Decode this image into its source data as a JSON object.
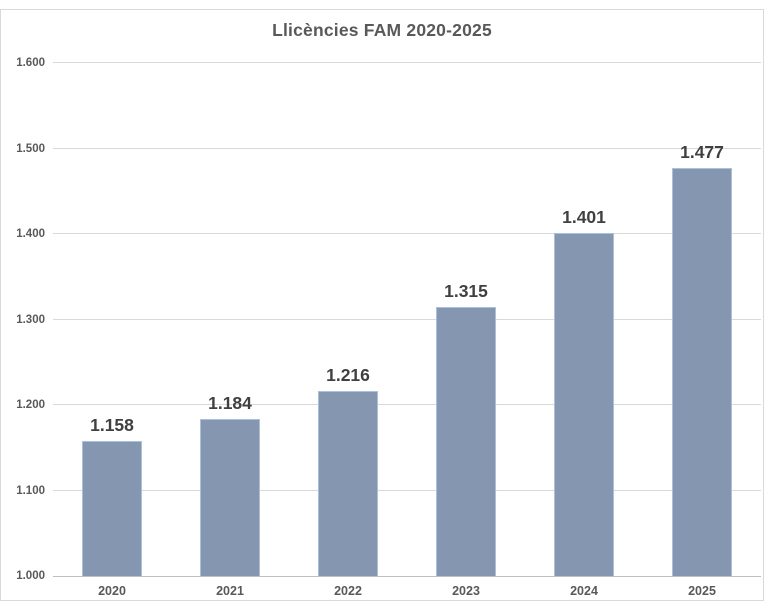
{
  "chart_data": {
    "type": "bar",
    "title": "Llicències FAM 2020-2025",
    "categories": [
      "2020",
      "2021",
      "2022",
      "2023",
      "2024",
      "2025"
    ],
    "values": [
      1158,
      1184,
      1216,
      1315,
      1401,
      1477
    ],
    "value_labels": [
      "1.158",
      "1.184",
      "1.216",
      "1.315",
      "1.401",
      "1.477"
    ],
    "xlabel": "",
    "ylabel": "",
    "ylim": [
      1000,
      1600
    ],
    "yticks": [
      1000,
      1100,
      1200,
      1300,
      1400,
      1500,
      1600
    ],
    "ytick_labels": [
      "1.000",
      "1.100",
      "1.200",
      "1.300",
      "1.400",
      "1.500",
      "1.600"
    ],
    "grid": true,
    "legend": false,
    "data_labels": true,
    "colors": {
      "bar_fill": "#8496B0",
      "bar_border": "#A9C0DE",
      "gridline": "#D9D9D9",
      "axis_line": "#BFBFBF",
      "title_text": "#595959",
      "tick_text": "#595959",
      "data_label_text": "#404040",
      "frame_border": "#D9D9D9",
      "background": "#FFFFFF"
    }
  }
}
